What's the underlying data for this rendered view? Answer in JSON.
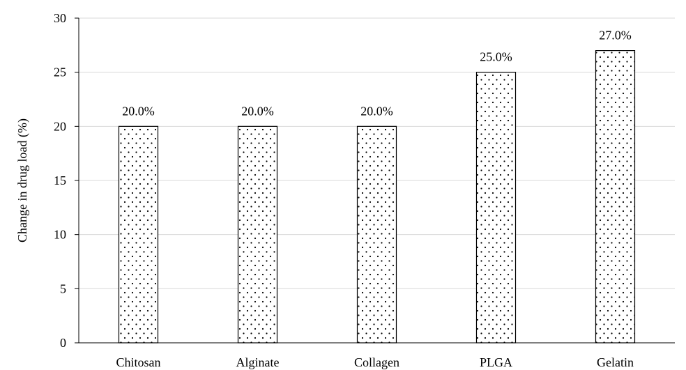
{
  "chart_data": {
    "type": "bar",
    "categories": [
      "Chitosan",
      "Alginate",
      "Collagen",
      "PLGA",
      "Gelatin"
    ],
    "values": [
      20.0,
      20.0,
      20.0,
      25.0,
      27.0
    ],
    "data_labels": [
      "20.0%",
      "20.0%",
      "20.0%",
      "25.0%",
      "27.0%"
    ],
    "title": "",
    "xlabel": "",
    "ylabel": "Change in drug load (%)",
    "ylim": [
      0,
      30
    ],
    "yticks": [
      0,
      5,
      10,
      15,
      20,
      25,
      30
    ],
    "grid": true,
    "legend": "none",
    "bar_fill": "dotted pattern",
    "colors": {
      "bar_border": "#000000",
      "bar_background": "#ffffff",
      "dot": "#000000",
      "gridline": "#d9d9d9",
      "axis": "#000000"
    }
  }
}
